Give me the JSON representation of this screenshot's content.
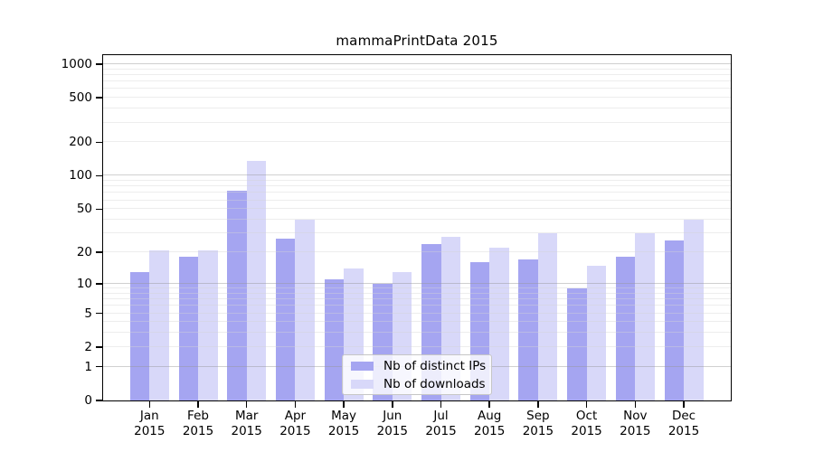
{
  "chart_data": {
    "type": "bar",
    "title": "mammaPrintData 2015",
    "scale": "log1p",
    "grid": true,
    "legend_position": "bottom-center-inside",
    "categories": [
      "Jan",
      "Feb",
      "Mar",
      "Apr",
      "May",
      "Jun",
      "Jul",
      "Aug",
      "Sep",
      "Oct",
      "Nov",
      "Dec"
    ],
    "x_tick_second_line": "2015",
    "series": [
      {
        "name": "Nb of distinct IPs",
        "color": "#a5a5f1",
        "values": [
          13,
          18,
          74,
          27,
          11,
          10,
          24,
          16,
          17,
          9,
          18,
          26
        ]
      },
      {
        "name": "Nb of downloads",
        "color": "#d8d8f9",
        "values": [
          21,
          21,
          135,
          40,
          14,
          13,
          28,
          22,
          30,
          15,
          30,
          40
        ]
      }
    ],
    "y_ticks": [
      0,
      1,
      2,
      5,
      10,
      20,
      50,
      100,
      200,
      500,
      1000
    ],
    "ylim": [
      0,
      1200
    ],
    "axis_color": "#000000",
    "major_grid_color": "#c9c9c9",
    "minor_grid_color": "#ececec",
    "background": "#ffffff"
  }
}
